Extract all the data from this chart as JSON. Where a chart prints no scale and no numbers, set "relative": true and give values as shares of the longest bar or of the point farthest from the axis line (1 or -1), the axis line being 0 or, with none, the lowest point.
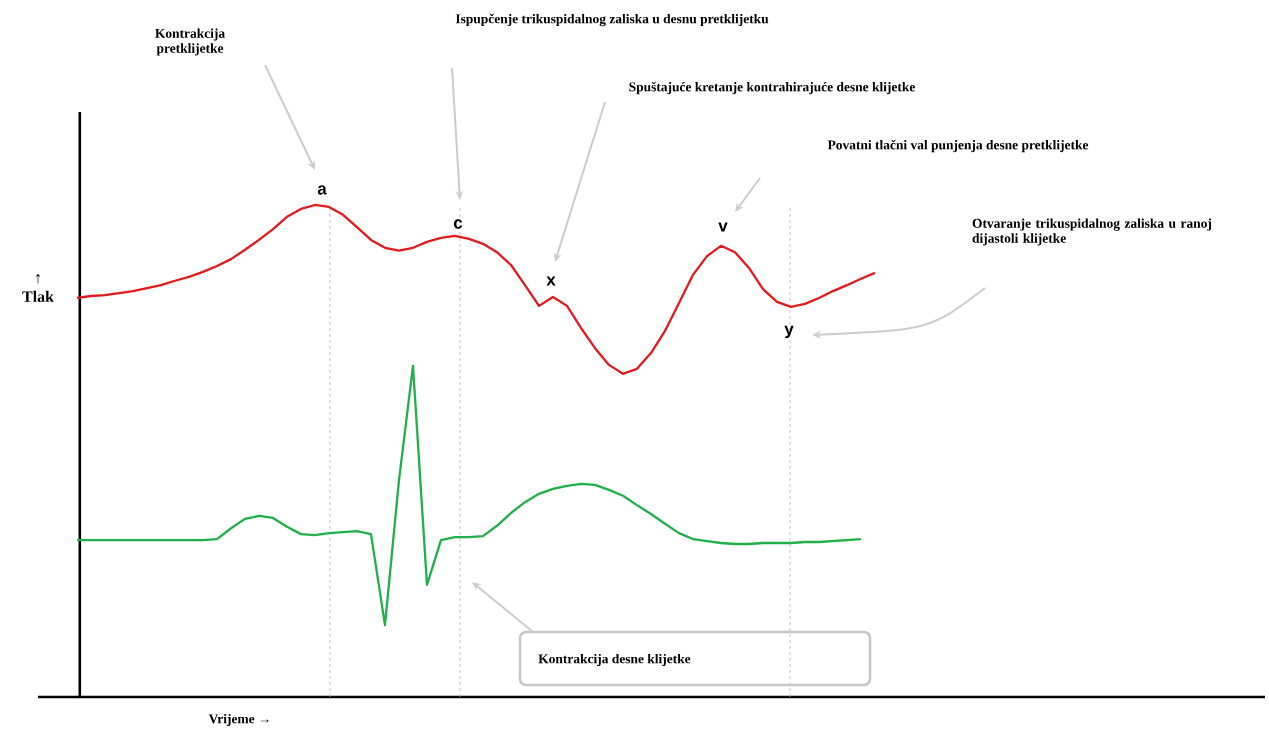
{
  "chart_data": {
    "type": "line",
    "relative": true,
    "xlabel": "Vrijeme →",
    "ylabel": "↑ Tlak",
    "marker": "none",
    "categories": [
      null,
      null,
      null,
      null,
      null,
      null,
      null,
      null,
      null,
      null,
      null,
      null,
      null,
      null,
      null,
      null,
      null,
      null,
      null,
      null,
      null,
      null,
      null,
      null,
      null,
      null,
      null,
      null,
      null,
      null,
      null,
      null,
      null,
      null,
      null,
      null,
      null,
      null,
      null,
      null,
      null,
      null,
      null,
      null,
      null,
      null,
      null,
      null,
      null,
      null,
      null,
      null,
      null,
      null,
      null,
      null,
      null,
      null
    ],
    "series": [
      {
        "color": "#e41a1c",
        "values": [
          0.811,
          0.815,
          0.817,
          0.821,
          0.825,
          0.831,
          0.837,
          0.846,
          0.854,
          0.864,
          0.876,
          0.89,
          0.909,
          0.929,
          0.951,
          0.976,
          0.992,
          1.0,
          0.996,
          0.98,
          0.955,
          0.929,
          0.913,
          0.907,
          0.913,
          0.925,
          0.933,
          0.937,
          0.931,
          0.921,
          0.904,
          0.878,
          0.837,
          0.795,
          0.813,
          0.795,
          0.75,
          0.709,
          0.675,
          0.657,
          0.667,
          0.699,
          0.744,
          0.801,
          0.858,
          0.896,
          0.917,
          0.904,
          0.872,
          0.829,
          0.803,
          0.793,
          0.799,
          0.811,
          0.825,
          0.837,
          0.85,
          0.862
        ]
      },
      {
        "color": "#22b04b",
        "values": [
          0.319,
          0.319,
          0.319,
          0.319,
          0.319,
          0.319,
          0.319,
          0.319,
          0.319,
          0.319,
          0.321,
          0.343,
          0.362,
          0.368,
          0.364,
          0.346,
          0.331,
          0.329,
          0.333,
          0.335,
          0.337,
          0.331,
          0.146,
          0.441,
          0.673,
          0.228,
          0.319,
          0.325,
          0.325,
          0.327,
          0.348,
          0.374,
          0.396,
          0.413,
          0.423,
          0.429,
          0.433,
          0.431,
          0.421,
          0.409,
          0.39,
          0.372,
          0.352,
          0.333,
          0.321,
          0.317,
          0.313,
          0.311,
          0.311,
          0.313,
          0.313,
          0.313,
          0.315,
          0.315,
          0.317,
          0.319,
          0.321,
          null
        ]
      }
    ],
    "annotations": [
      "Kontrakcija pretklijetke",
      "Ispupčenje trikuspidalnog zaliska u desnu pretklijetku",
      "Spuštajuće kretanje kontrahirajuće desne klijetke",
      "Povatni tlačni val punjenja desne pretklijetke",
      "Otvaranje trikuspidalnog zaliska u ranoj dijastoli klijetke",
      "Kontrakcija desne klijetke",
      "a",
      "c",
      "x",
      "v",
      "y"
    ]
  }
}
